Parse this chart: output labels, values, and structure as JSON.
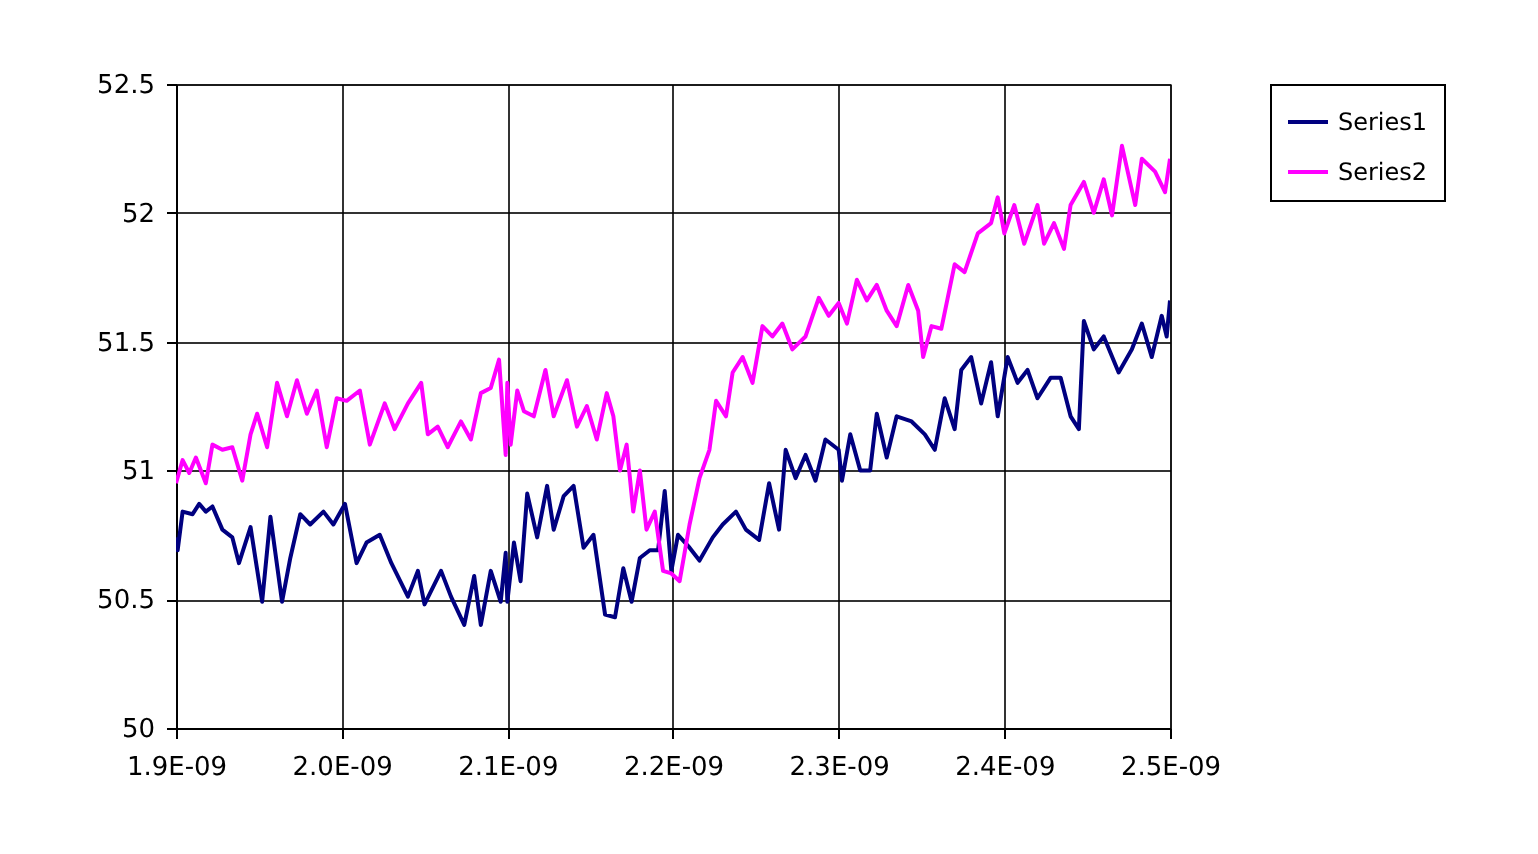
{
  "chart_data": {
    "type": "line",
    "xlim": [
      1.9e-09,
      2.5e-09
    ],
    "ylim": [
      50,
      52.5
    ],
    "xticks": [
      {
        "value": 1.9e-09,
        "label": "1.9E-09"
      },
      {
        "value": 2e-09,
        "label": "2.0E-09"
      },
      {
        "value": 2.1e-09,
        "label": "2.1E-09"
      },
      {
        "value": 2.2e-09,
        "label": "2.2E-09"
      },
      {
        "value": 2.3e-09,
        "label": "2.3E-09"
      },
      {
        "value": 2.4e-09,
        "label": "2.4E-09"
      },
      {
        "value": 2.5e-09,
        "label": "2.5E-09"
      }
    ],
    "yticks": [
      50,
      50.5,
      51,
      51.5,
      52,
      52.5
    ],
    "grid": true,
    "legend": "right",
    "marker": "none",
    "line_style": "solid",
    "series": [
      {
        "name": "Series1",
        "color": "#000080",
        "x": [
          1.9e-09,
          1.901e-09,
          1.904e-09,
          1.91e-09,
          1.914e-09,
          1.918e-09,
          1.922e-09,
          1.928e-09,
          1.934e-09,
          1.938e-09,
          1.945e-09,
          1.952e-09,
          1.957e-09,
          1.964e-09,
          1.969e-09,
          1.975e-09,
          1.981e-09,
          1.989e-09,
          1.995e-09,
          2.002e-09,
          2.009e-09,
          2.015e-09,
          2.023e-09,
          2.03e-09,
          2.04e-09,
          2.046e-09,
          2.05e-09,
          2.06e-09,
          2.066e-09,
          2.074e-09,
          2.08e-09,
          2.084e-09,
          2.09e-09,
          2.096e-09,
          2.099e-09,
          2.1e-09,
          2.104e-09,
          2.108e-09,
          2.112e-09,
          2.118e-09,
          2.124e-09,
          2.128e-09,
          2.134e-09,
          2.14e-09,
          2.146e-09,
          2.152e-09,
          2.159e-09,
          2.165e-09,
          2.17e-09,
          2.175e-09,
          2.18e-09,
          2.186e-09,
          2.191e-09,
          2.195e-09,
          2.199e-09,
          2.203e-09,
          2.21e-09,
          2.216e-09,
          2.224e-09,
          2.23e-09,
          2.238e-09,
          2.244e-09,
          2.252e-09,
          2.258e-09,
          2.264e-09,
          2.268e-09,
          2.274e-09,
          2.28e-09,
          2.286e-09,
          2.292e-09,
          2.3e-09,
          2.302e-09,
          2.307e-09,
          2.313e-09,
          2.319e-09,
          2.323e-09,
          2.329e-09,
          2.335e-09,
          2.344e-09,
          2.352e-09,
          2.358e-09,
          2.364e-09,
          2.37e-09,
          2.374e-09,
          2.38e-09,
          2.386e-09,
          2.392e-09,
          2.396e-09,
          2.402e-09,
          2.408e-09,
          2.414e-09,
          2.42e-09,
          2.428e-09,
          2.434e-09,
          2.44e-09,
          2.445e-09,
          2.448e-09,
          2.454e-09,
          2.46e-09,
          2.469e-09,
          2.477e-09,
          2.483e-09,
          2.489e-09,
          2.495e-09,
          2.498e-09,
          2.5e-09
        ],
        "values": [
          50.74,
          50.69,
          50.84,
          50.83,
          50.87,
          50.84,
          50.86,
          50.77,
          50.74,
          50.64,
          50.78,
          50.49,
          50.82,
          50.49,
          50.66,
          50.83,
          50.79,
          50.84,
          50.79,
          50.87,
          50.64,
          50.72,
          50.75,
          50.64,
          50.51,
          50.61,
          50.48,
          50.61,
          50.51,
          50.4,
          50.59,
          50.4,
          50.61,
          50.49,
          50.68,
          50.49,
          50.72,
          50.57,
          50.91,
          50.74,
          50.94,
          50.77,
          50.9,
          50.94,
          50.7,
          50.75,
          50.44,
          50.43,
          50.62,
          50.49,
          50.66,
          50.69,
          50.69,
          50.92,
          50.61,
          50.75,
          50.7,
          50.65,
          50.74,
          50.79,
          50.84,
          50.77,
          50.73,
          50.95,
          50.77,
          51.08,
          50.97,
          51.06,
          50.96,
          51.12,
          51.08,
          50.96,
          51.14,
          51.0,
          51.0,
          51.22,
          51.05,
          51.21,
          51.19,
          51.14,
          51.08,
          51.28,
          51.16,
          51.39,
          51.44,
          51.26,
          51.42,
          51.21,
          51.44,
          51.34,
          51.39,
          51.28,
          51.36,
          51.36,
          51.21,
          51.16,
          51.58,
          51.47,
          51.52,
          51.38,
          51.47,
          51.57,
          51.44,
          51.6,
          51.52,
          51.66
        ]
      },
      {
        "name": "Series2",
        "color": "#ff00ff",
        "x": [
          1.9e-09,
          1.904e-09,
          1.908e-09,
          1.912e-09,
          1.918e-09,
          1.922e-09,
          1.928e-09,
          1.934e-09,
          1.94e-09,
          1.945e-09,
          1.949e-09,
          1.955e-09,
          1.961e-09,
          1.967e-09,
          1.973e-09,
          1.979e-09,
          1.985e-09,
          1.991e-09,
          1.997e-09,
          2.003e-09,
          2.011e-09,
          2.017e-09,
          2.026e-09,
          2.032e-09,
          2.04e-09,
          2.048e-09,
          2.052e-09,
          2.058e-09,
          2.064e-09,
          2.072e-09,
          2.078e-09,
          2.084e-09,
          2.09e-09,
          2.095e-09,
          2.099e-09,
          2.1e-09,
          2.102e-09,
          2.106e-09,
          2.11e-09,
          2.116e-09,
          2.123e-09,
          2.128e-09,
          2.136e-09,
          2.142e-09,
          2.148e-09,
          2.154e-09,
          2.16e-09,
          2.164e-09,
          2.168e-09,
          2.172e-09,
          2.176e-09,
          2.18e-09,
          2.184e-09,
          2.189e-09,
          2.194e-09,
          2.199e-09,
          2.204e-09,
          2.21e-09,
          2.216e-09,
          2.222e-09,
          2.226e-09,
          2.232e-09,
          2.236e-09,
          2.242e-09,
          2.248e-09,
          2.254e-09,
          2.26e-09,
          2.266e-09,
          2.272e-09,
          2.28e-09,
          2.288e-09,
          2.294e-09,
          2.3e-09,
          2.305e-09,
          2.311e-09,
          2.317e-09,
          2.323e-09,
          2.329e-09,
          2.335e-09,
          2.342e-09,
          2.348e-09,
          2.351e-09,
          2.356e-09,
          2.362e-09,
          2.37e-09,
          2.376e-09,
          2.384e-09,
          2.392e-09,
          2.396e-09,
          2.4e-09,
          2.406e-09,
          2.412e-09,
          2.42e-09,
          2.424e-09,
          2.43e-09,
          2.436e-09,
          2.44e-09,
          2.448e-09,
          2.454e-09,
          2.46e-09,
          2.465e-09,
          2.471e-09,
          2.479e-09,
          2.483e-09,
          2.491e-09,
          2.497e-09,
          2.5e-09
        ],
        "values": [
          50.95,
          51.04,
          50.99,
          51.05,
          50.95,
          51.1,
          51.08,
          51.09,
          50.96,
          51.14,
          51.22,
          51.09,
          51.34,
          51.21,
          51.35,
          51.22,
          51.31,
          51.09,
          51.28,
          51.27,
          51.31,
          51.1,
          51.26,
          51.16,
          51.26,
          51.34,
          51.14,
          51.17,
          51.09,
          51.19,
          51.12,
          51.3,
          51.32,
          51.43,
          51.06,
          51.34,
          51.1,
          51.31,
          51.23,
          51.21,
          51.39,
          51.21,
          51.35,
          51.17,
          51.25,
          51.12,
          51.3,
          51.21,
          51.0,
          51.1,
          50.84,
          51.0,
          50.77,
          50.84,
          50.61,
          50.6,
          50.57,
          50.79,
          50.97,
          51.08,
          51.27,
          51.21,
          51.38,
          51.44,
          51.34,
          51.56,
          51.52,
          51.57,
          51.47,
          51.52,
          51.67,
          51.6,
          51.65,
          51.57,
          51.74,
          51.66,
          51.72,
          51.62,
          51.56,
          51.72,
          51.62,
          51.44,
          51.56,
          51.55,
          51.8,
          51.77,
          51.92,
          51.96,
          52.06,
          51.92,
          52.03,
          51.88,
          52.03,
          51.88,
          51.96,
          51.86,
          52.03,
          52.12,
          52.0,
          52.13,
          51.99,
          52.26,
          52.03,
          52.21,
          52.16,
          52.08,
          52.21
        ]
      }
    ]
  }
}
